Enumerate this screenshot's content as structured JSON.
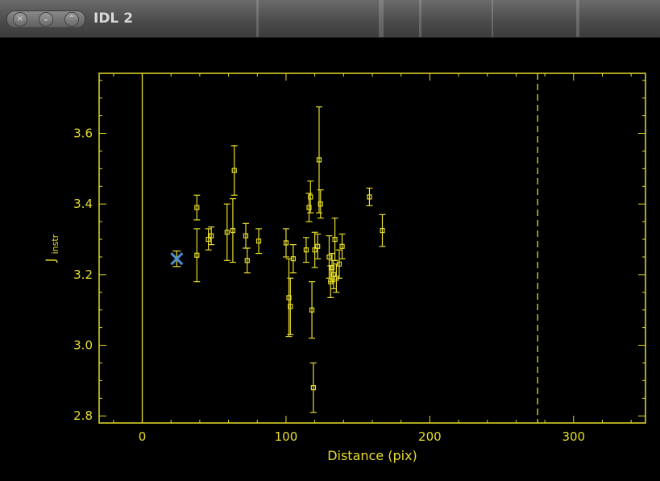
{
  "window": {
    "title": "IDL 2",
    "buttons": [
      {
        "name": "close-button",
        "glyph": "×"
      },
      {
        "name": "minimize-button",
        "glyph": "⌄"
      },
      {
        "name": "maximize-button",
        "glyph": "⌃"
      }
    ]
  },
  "colors": {
    "axis": "#e6dc2a",
    "marker": "#e6dc2a",
    "special_marker": "#4a8fd0",
    "background": "#000000"
  },
  "chart_data": {
    "type": "scatter",
    "xlabel": "Distance (pix)",
    "ylabel_main": "J",
    "ylabel_sub": "instr",
    "xlim": [
      -30,
      350
    ],
    "ylim": [
      2.78,
      3.77
    ],
    "xticks": [
      0,
      100,
      200,
      300
    ],
    "yticks": [
      2.8,
      3.0,
      3.2,
      3.4,
      3.6
    ],
    "xtick_labels": [
      "0",
      "100",
      "200",
      "300"
    ],
    "ytick_labels": [
      "2.8",
      "3.0",
      "3.2",
      "3.4",
      "3.6"
    ],
    "vertical_lines": [
      {
        "x": 0,
        "style": "solid"
      },
      {
        "x": 275,
        "style": "dashed"
      }
    ],
    "highlight_point": {
      "x": 24,
      "y": 3.245,
      "err": 0.022
    },
    "points": [
      {
        "x": 38,
        "y": 3.39,
        "err": 0.035
      },
      {
        "x": 38,
        "y": 3.255,
        "err": 0.075
      },
      {
        "x": 46,
        "y": 3.3,
        "err": 0.03
      },
      {
        "x": 48,
        "y": 3.31,
        "err": 0.025
      },
      {
        "x": 59,
        "y": 3.32,
        "err": 0.08
      },
      {
        "x": 63,
        "y": 3.325,
        "err": 0.09
      },
      {
        "x": 64,
        "y": 3.495,
        "err": 0.07
      },
      {
        "x": 72,
        "y": 3.31,
        "err": 0.035
      },
      {
        "x": 73,
        "y": 3.24,
        "err": 0.035
      },
      {
        "x": 81,
        "y": 3.295,
        "err": 0.035
      },
      {
        "x": 100,
        "y": 3.29,
        "err": 0.04
      },
      {
        "x": 102,
        "y": 3.135,
        "err": 0.11
      },
      {
        "x": 103,
        "y": 3.11,
        "err": 0.08
      },
      {
        "x": 105,
        "y": 3.245,
        "err": 0.04
      },
      {
        "x": 114,
        "y": 3.27,
        "err": 0.035
      },
      {
        "x": 116,
        "y": 3.39,
        "err": 0.04
      },
      {
        "x": 117,
        "y": 3.42,
        "err": 0.045
      },
      {
        "x": 118,
        "y": 3.1,
        "err": 0.08
      },
      {
        "x": 119,
        "y": 2.88,
        "err": 0.07
      },
      {
        "x": 120,
        "y": 3.27,
        "err": 0.05
      },
      {
        "x": 122,
        "y": 3.28,
        "err": 0.035
      },
      {
        "x": 123,
        "y": 3.525,
        "err": 0.15
      },
      {
        "x": 124,
        "y": 3.4,
        "err": 0.04
      },
      {
        "x": 130,
        "y": 3.25,
        "err": 0.06
      },
      {
        "x": 131,
        "y": 3.18,
        "err": 0.045
      },
      {
        "x": 132,
        "y": 3.22,
        "err": 0.04
      },
      {
        "x": 133,
        "y": 3.2,
        "err": 0.04
      },
      {
        "x": 134,
        "y": 3.3,
        "err": 0.06
      },
      {
        "x": 135,
        "y": 3.19,
        "err": 0.04
      },
      {
        "x": 137,
        "y": 3.23,
        "err": 0.04
      },
      {
        "x": 139,
        "y": 3.28,
        "err": 0.035
      },
      {
        "x": 158,
        "y": 3.42,
        "err": 0.025
      },
      {
        "x": 167,
        "y": 3.325,
        "err": 0.045
      }
    ]
  }
}
